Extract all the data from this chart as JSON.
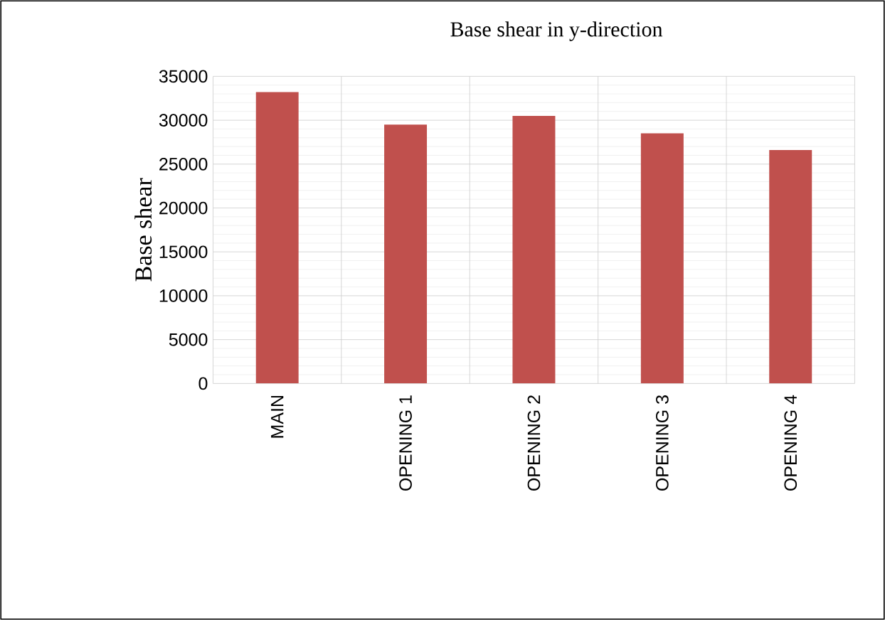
{
  "chart_data": {
    "type": "bar",
    "title": "Base shear in y-direction",
    "ylabel": "Base shear",
    "categories": [
      "MAIN",
      "OPENING 1",
      "OPENING 2",
      "OPENING 3",
      "OPENING 4"
    ],
    "values": [
      33200,
      29500,
      30500,
      28500,
      26600
    ],
    "color": "#c0504d",
    "ylim": [
      0,
      35000
    ],
    "yticks": [
      0,
      5000,
      10000,
      15000,
      20000,
      25000,
      30000,
      35000
    ],
    "grid": true
  }
}
